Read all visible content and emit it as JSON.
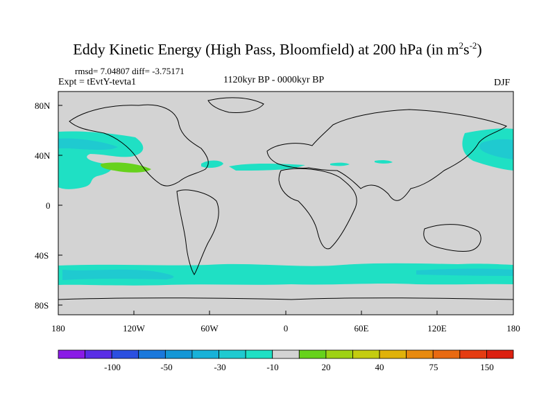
{
  "title": {
    "main": "Eddy Kinetic Energy (High Pass, Bloomfield) at 200 hPa (in m",
    "sup1": "2",
    "mid": "s",
    "sup2": "-2",
    "close": ")"
  },
  "stats": "rmsd= 7.04807 diff= -3.75171",
  "experiment": "Expt = tEvtY-tevta1",
  "period": "1120kyr BP - 0000kyr BP",
  "season": "DJF",
  "lat_ticks": [
    "80N",
    "40N",
    "0",
    "40S",
    "80S"
  ],
  "lon_ticks": [
    "180",
    "120W",
    "60W",
    "0",
    "60E",
    "120E",
    "180"
  ],
  "colorbar": {
    "labels": [
      "-100",
      "-50",
      "-30",
      "-10",
      "20",
      "40",
      "75",
      "150"
    ],
    "colors": [
      "#8a1be6",
      "#5a2ee6",
      "#2b4fe0",
      "#1a78dc",
      "#1597d6",
      "#18b2d8",
      "#1fcad0",
      "#1fe0c4",
      "#d3d3d3",
      "#66d21c",
      "#9ed215",
      "#c4cc10",
      "#e0b20a",
      "#e88a0e",
      "#e86a12",
      "#e53c12",
      "#dc2010"
    ]
  },
  "map_colors": {
    "background": "#d3d3d3",
    "cyan": "#1fe0c4",
    "teal": "#1fcad0",
    "green": "#66d21c"
  }
}
